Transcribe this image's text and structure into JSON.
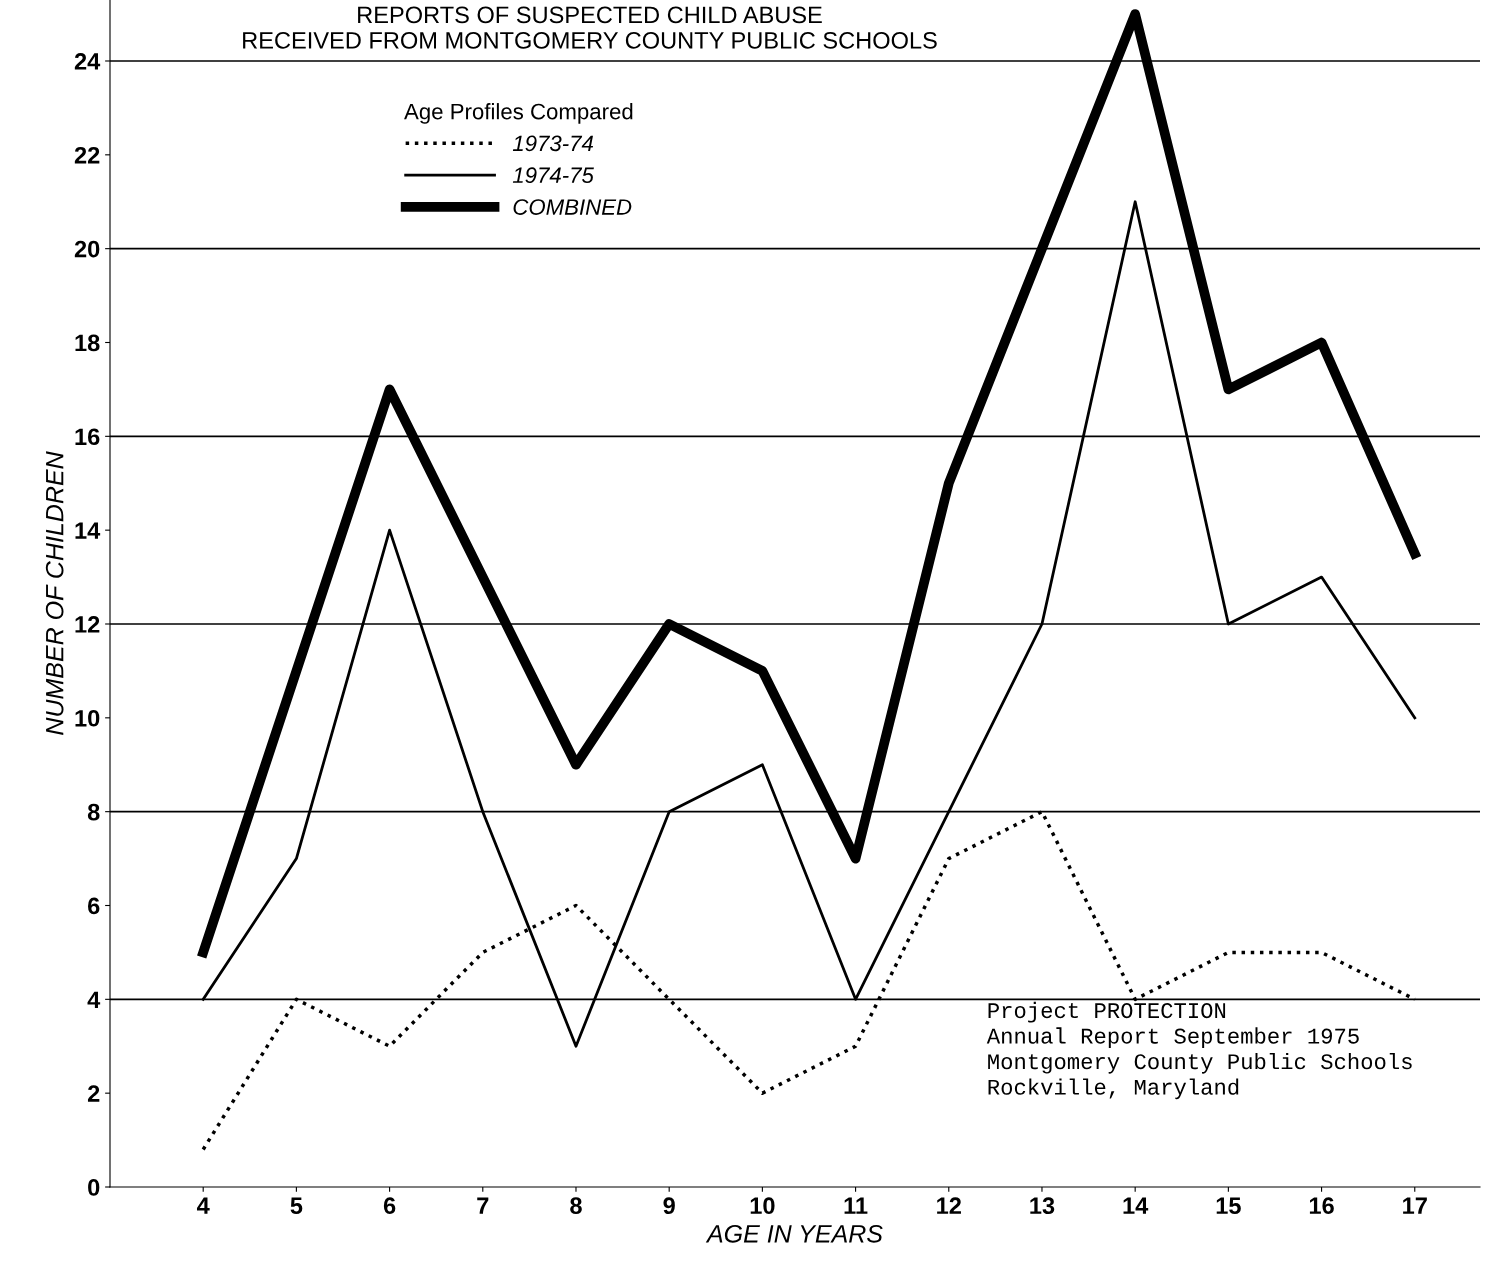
{
  "chart_data": {
    "type": "line",
    "title": "REPORTS OF SUSPECTED CHILD ABUSE\nRECEIVED FROM MONTGOMERY COUNTY PUBLIC SCHOOLS",
    "xlabel": "AGE IN YEARS",
    "ylabel": "NUMBER OF CHILDREN",
    "legend_title": "Age Profiles Compared",
    "x": [
      4,
      5,
      6,
      7,
      8,
      9,
      10,
      11,
      12,
      13,
      14,
      15,
      16,
      17
    ],
    "series": [
      {
        "name": "1973-74",
        "color": "#000000",
        "line_style": "dotted",
        "values": [
          0.8,
          4,
          3,
          5,
          6,
          4,
          2,
          3,
          7,
          8,
          4,
          5,
          5,
          4
        ]
      },
      {
        "name": "1974-75",
        "color": "#000000",
        "line_style": "solid",
        "values": [
          4,
          7,
          14,
          8,
          3,
          8,
          9,
          4,
          8,
          12,
          21,
          12,
          13,
          10
        ]
      },
      {
        "name": "COMBINED",
        "color": "#000000",
        "line_style": "solid",
        "values": [
          5,
          11,
          17,
          13,
          9,
          12,
          11,
          7,
          15,
          20,
          25,
          17,
          18,
          13.5
        ]
      }
    ],
    "xlim": [
      3,
      17.7
    ],
    "xticks": [
      4,
      5,
      6,
      7,
      8,
      9,
      10,
      11,
      12,
      13,
      14,
      15,
      16,
      17
    ],
    "ylim": [
      0,
      25.3
    ],
    "yticks": [
      0,
      2,
      4,
      6,
      8,
      10,
      12,
      14,
      16,
      18,
      20,
      22,
      24
    ],
    "ref_lines": [
      {
        "axis": "y",
        "value": 4
      },
      {
        "axis": "y",
        "value": 8
      },
      {
        "axis": "y",
        "value": 12
      },
      {
        "axis": "y",
        "value": 16
      },
      {
        "axis": "y",
        "value": 20
      },
      {
        "axis": "y",
        "value": 24
      }
    ],
    "legend": "top left",
    "marker": "none",
    "annotations": [
      "Project PROTECTION\nAnnual Report September 1975\nMontgomery County Public Schools\nRockville, Maryland"
    ]
  }
}
